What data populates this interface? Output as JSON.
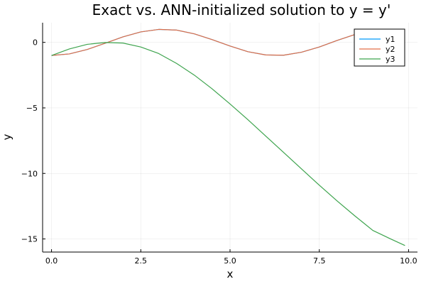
{
  "chart_data": {
    "type": "line",
    "title": "Exact vs. ANN-initialized solution to y = y'",
    "xlabel": "x",
    "ylabel": "y",
    "xlim": [
      -0.25,
      10.25
    ],
    "ylim": [
      -16,
      1.5
    ],
    "xticks": [
      0.0,
      2.5,
      5.0,
      7.5,
      10.0
    ],
    "xtick_labels": [
      "0.0",
      "2.5",
      "5.0",
      "7.5",
      "10.0"
    ],
    "yticks": [
      0,
      -5,
      -10,
      -15
    ],
    "ytick_labels": [
      "0",
      "−5",
      "−10",
      "−15"
    ],
    "grid": true,
    "legend_position": "top-right",
    "x": [
      0.0,
      0.5,
      1.0,
      1.5,
      2.0,
      2.5,
      3.0,
      3.5,
      4.0,
      4.5,
      5.0,
      5.5,
      6.0,
      6.5,
      7.0,
      7.5,
      8.0,
      8.5,
      9.0,
      9.5,
      9.9
    ],
    "series": [
      {
        "name": "y1",
        "color": "#009AFA",
        "values": [
          -1.0,
          -0.88,
          -0.54,
          -0.07,
          0.42,
          0.8,
          0.99,
          0.94,
          0.65,
          0.21,
          -0.28,
          -0.71,
          -0.96,
          -0.98,
          -0.75,
          -0.35,
          0.15,
          0.6,
          0.91,
          1.0,
          0.9
        ]
      },
      {
        "name": "y2",
        "color": "#E36F47",
        "values": [
          -1.0,
          -0.88,
          -0.54,
          -0.07,
          0.42,
          0.8,
          0.99,
          0.94,
          0.65,
          0.21,
          -0.28,
          -0.71,
          -0.96,
          -0.98,
          -0.75,
          -0.35,
          0.15,
          0.6,
          0.91,
          1.0,
          0.9
        ]
      },
      {
        "name": "y3",
        "color": "#3EA44E",
        "values": [
          -1.0,
          -0.5,
          -0.15,
          -0.01,
          -0.05,
          -0.35,
          -0.85,
          -1.6,
          -2.5,
          -3.55,
          -4.7,
          -5.9,
          -7.15,
          -8.4,
          -9.65,
          -10.9,
          -12.1,
          -13.25,
          -14.35,
          -15.0,
          -15.5
        ]
      }
    ]
  }
}
